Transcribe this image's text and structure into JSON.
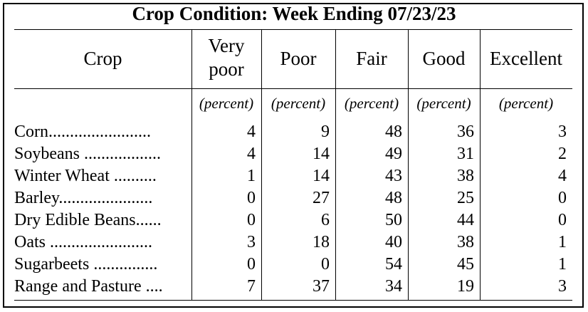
{
  "title": "Crop Condition: Week Ending 07/23/23",
  "columns": {
    "crop": "Crop",
    "very_poor_1": "Very",
    "very_poor_2": "poor",
    "poor": "Poor",
    "fair": "Fair",
    "good": "Good",
    "excellent": "Excellent"
  },
  "unit_label": "(percent)",
  "rows": [
    {
      "crop": "Corn",
      "dots": "........................",
      "very_poor": "4",
      "poor": "9",
      "fair": "48",
      "good": "36",
      "excellent": "3"
    },
    {
      "crop": "Soybeans",
      "dots": "..................",
      "very_poor": "4",
      "poor": "14",
      "fair": "49",
      "good": "31",
      "excellent": "2"
    },
    {
      "crop": "Winter Wheat",
      "dots": "..........",
      "very_poor": "1",
      "poor": "14",
      "fair": "43",
      "good": "38",
      "excellent": "4"
    },
    {
      "crop": "Barley",
      "dots": "......................",
      "very_poor": "0",
      "poor": "27",
      "fair": "48",
      "good": "25",
      "excellent": "0"
    },
    {
      "crop": "Dry Edible Beans",
      "dots": "......",
      "very_poor": "0",
      "poor": "6",
      "fair": "50",
      "good": "44",
      "excellent": "0"
    },
    {
      "crop": "Oats",
      "dots": "........................",
      "very_poor": "3",
      "poor": "18",
      "fair": "40",
      "good": "38",
      "excellent": "1"
    },
    {
      "crop": "Sugarbeets",
      "dots": "...............",
      "very_poor": "0",
      "poor": "0",
      "fair": "54",
      "good": "45",
      "excellent": "1"
    },
    {
      "crop": "Range and Pasture",
      "dots": "....",
      "very_poor": "7",
      "poor": "37",
      "fair": "34",
      "good": "19",
      "excellent": "3"
    }
  ]
}
